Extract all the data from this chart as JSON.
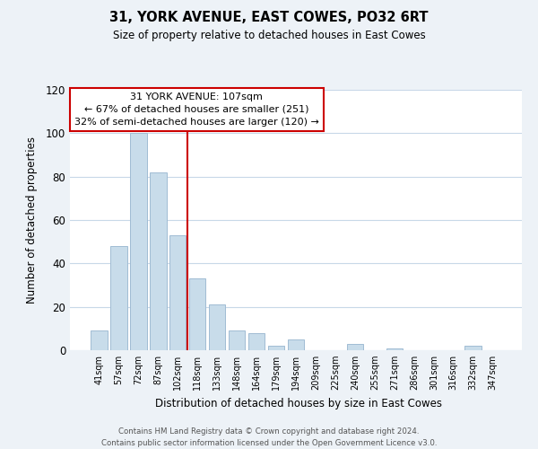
{
  "title": "31, YORK AVENUE, EAST COWES, PO32 6RT",
  "subtitle": "Size of property relative to detached houses in East Cowes",
  "xlabel": "Distribution of detached houses by size in East Cowes",
  "ylabel": "Number of detached properties",
  "bar_labels": [
    "41sqm",
    "57sqm",
    "72sqm",
    "87sqm",
    "102sqm",
    "118sqm",
    "133sqm",
    "148sqm",
    "164sqm",
    "179sqm",
    "194sqm",
    "209sqm",
    "225sqm",
    "240sqm",
    "255sqm",
    "271sqm",
    "286sqm",
    "301sqm",
    "316sqm",
    "332sqm",
    "347sqm"
  ],
  "bar_values": [
    9,
    48,
    100,
    82,
    53,
    33,
    21,
    9,
    8,
    2,
    5,
    0,
    0,
    3,
    0,
    1,
    0,
    0,
    0,
    2,
    0
  ],
  "bar_color": "#c8dcea",
  "bar_edge_color": "#a0bcd4",
  "vline_x": 4.5,
  "vline_color": "#cc0000",
  "ylim": [
    0,
    120
  ],
  "yticks": [
    0,
    20,
    40,
    60,
    80,
    100,
    120
  ],
  "annotation_title": "31 YORK AVENUE: 107sqm",
  "annotation_line1": "← 67% of detached houses are smaller (251)",
  "annotation_line2": "32% of semi-detached houses are larger (120) →",
  "annotation_box_color": "#ffffff",
  "annotation_box_edge": "#cc0000",
  "footer_line1": "Contains HM Land Registry data © Crown copyright and database right 2024.",
  "footer_line2": "Contains public sector information licensed under the Open Government Licence v3.0.",
  "bg_color": "#edf2f7",
  "plot_bg_color": "#ffffff",
  "grid_color": "#c8d8e8"
}
